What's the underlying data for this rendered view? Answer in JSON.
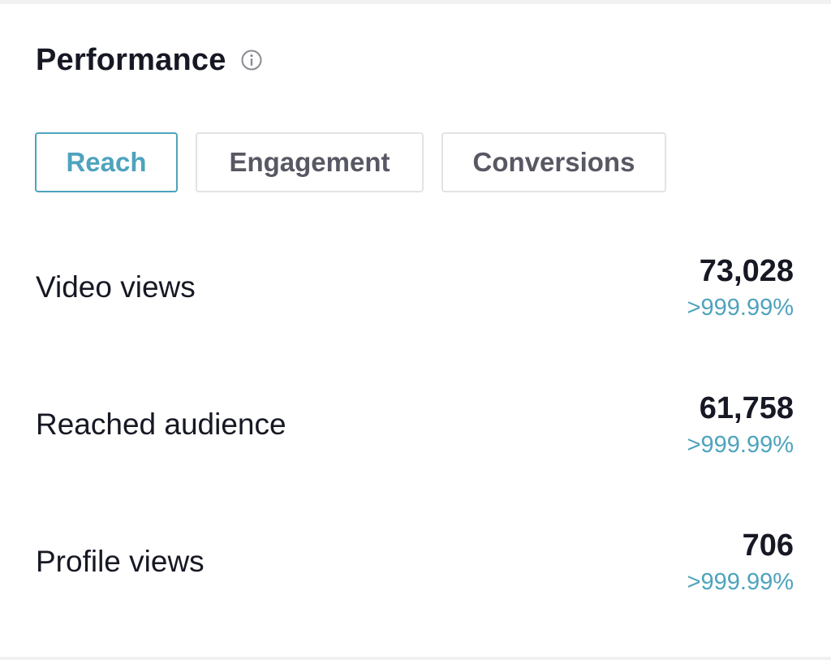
{
  "colors": {
    "accent": "#4ea3bd",
    "text_primary": "#161823",
    "text_secondary": "#575863",
    "border": "#e3e3e4"
  },
  "header": {
    "title": "Performance",
    "info_icon": "info-circle-icon"
  },
  "tabs": [
    {
      "label": "Reach",
      "active": true
    },
    {
      "label": "Engagement",
      "active": false
    },
    {
      "label": "Conversions",
      "active": false
    }
  ],
  "metrics": [
    {
      "label": "Video views",
      "value": "73,028",
      "change": ">999.99%"
    },
    {
      "label": "Reached audience",
      "value": "61,758",
      "change": ">999.99%"
    },
    {
      "label": "Profile views",
      "value": "706",
      "change": ">999.99%"
    }
  ]
}
